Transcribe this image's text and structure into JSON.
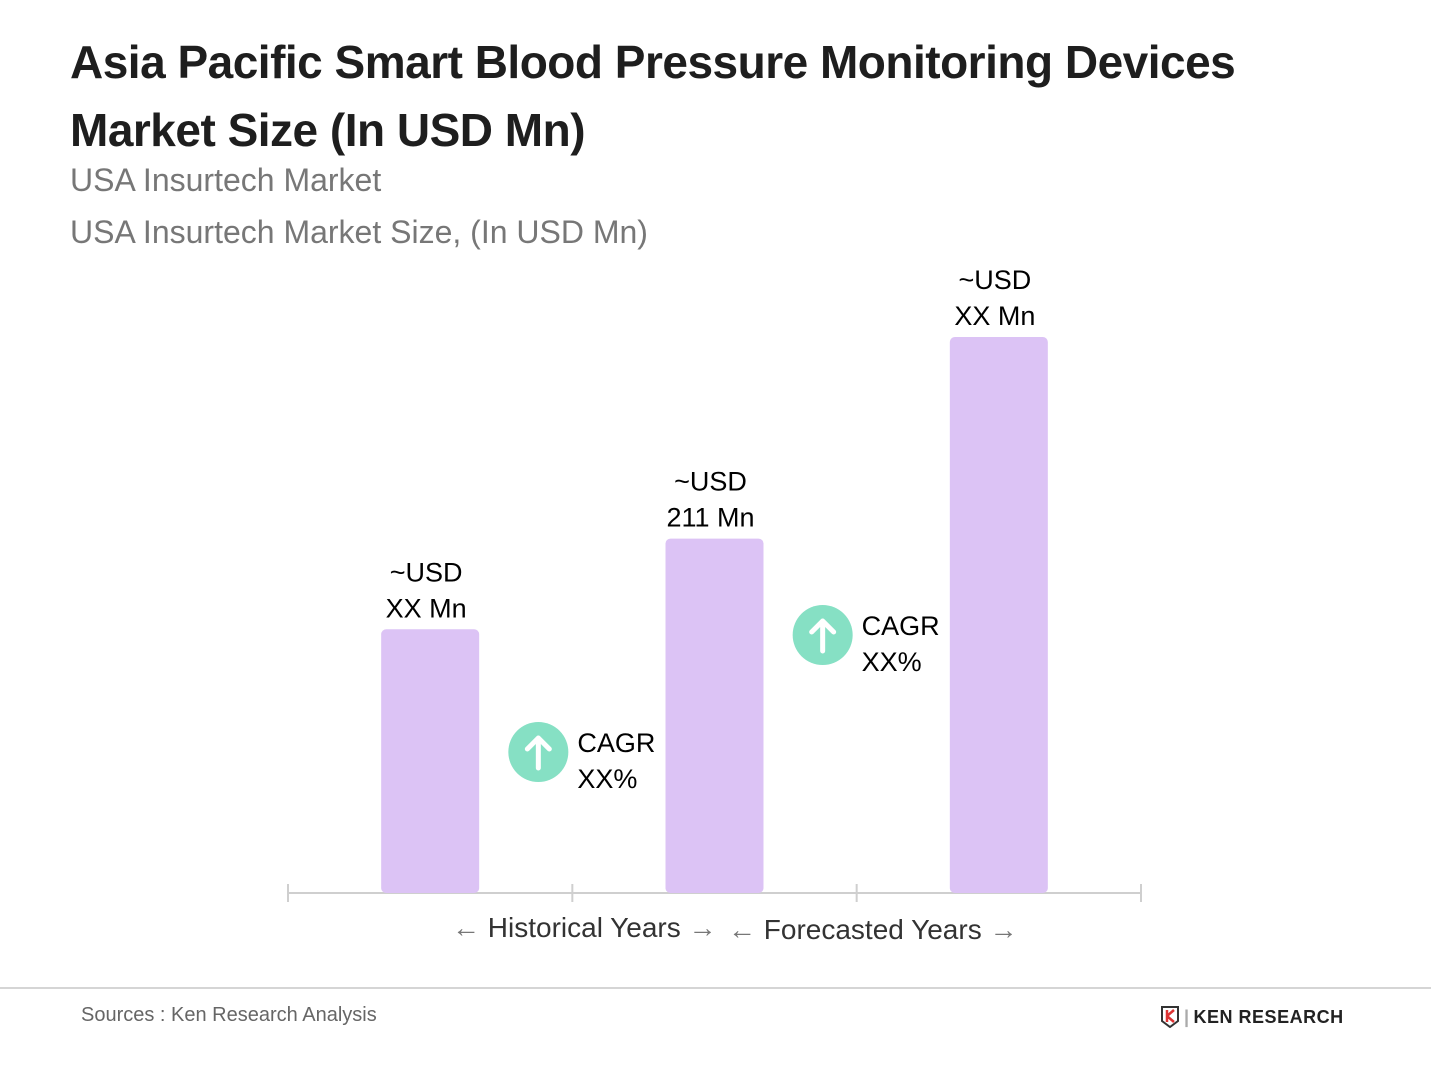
{
  "chart_data": {
    "type": "bar",
    "title": "Asia Pacific Smart Blood Pressure Monitoring Devices Market Size (In USD Mn)",
    "subtitle": [
      "USA Insurtech Market",
      "USA Insurtech Market Size, (In USD Mn)"
    ],
    "categories": [
      "",
      "",
      ""
    ],
    "values": [
      157,
      211,
      331
    ],
    "data_labels": [
      [
        "~USD",
        "XX Mn"
      ],
      [
        "~USD",
        "211 Mn"
      ],
      [
        "~USD",
        "XX Mn"
      ]
    ],
    "ylim": [
      0,
      380
    ],
    "bar_color": "#dcc3f5",
    "cagr": [
      {
        "label": "CAGR",
        "value": "XX%"
      },
      {
        "label": "CAGR",
        "value": "XX%"
      }
    ],
    "cagr_color": "#86e0c4",
    "axis_labels": {
      "historical": "Historical Years",
      "forecast": "Forecasted Years"
    },
    "grid": false
  },
  "footer": {
    "source": "Sources : Ken Research Analysis",
    "logo": "KEN RESEARCH"
  }
}
